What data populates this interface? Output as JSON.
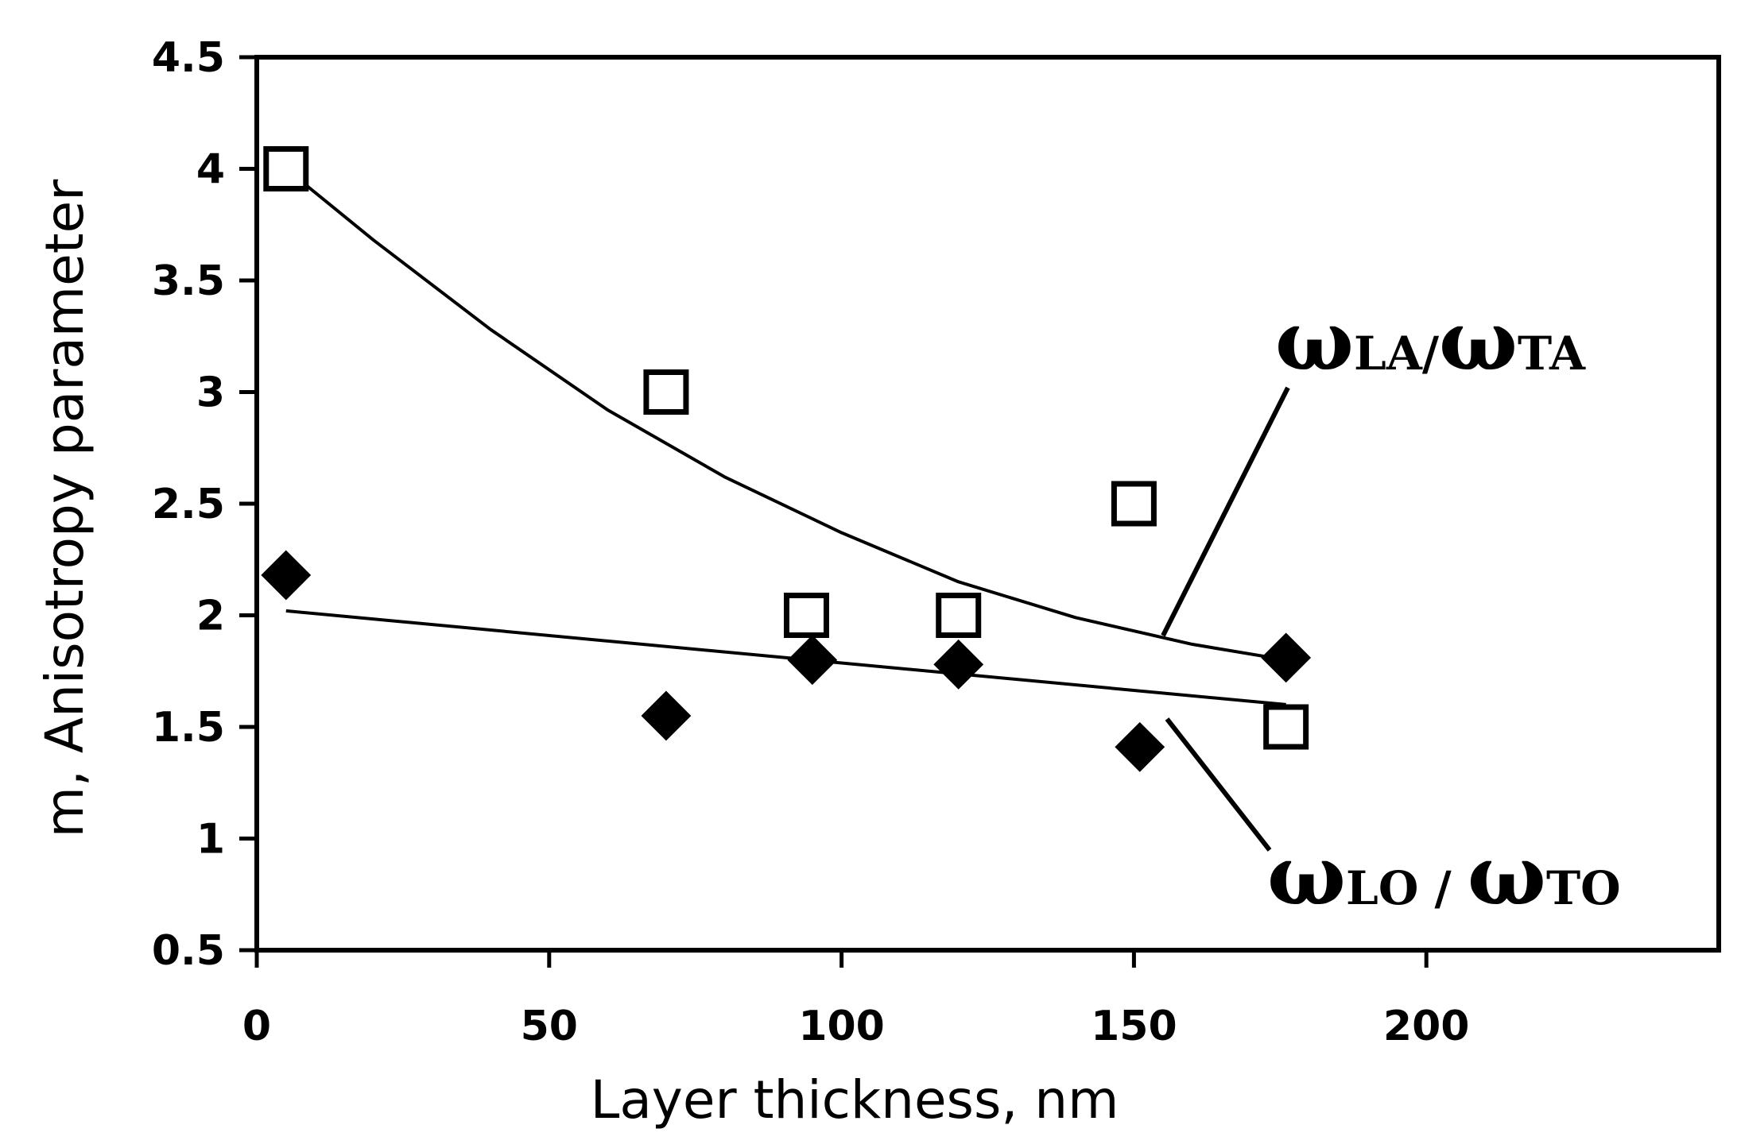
{
  "chart_data": {
    "type": "scatter",
    "title": "",
    "xlabel": "Layer thickness, nm",
    "ylabel": "m, Anisotropy parameter",
    "xlim": [
      0,
      250
    ],
    "ylim": [
      0.5,
      4.5
    ],
    "x_ticks": [
      0,
      50,
      100,
      150,
      200
    ],
    "x_tick_labels": [
      "0",
      "50",
      "100",
      "150",
      "200"
    ],
    "y_ticks": [
      0.5,
      1,
      1.5,
      2,
      2.5,
      3,
      3.5,
      4,
      4.5
    ],
    "y_tick_labels": [
      "0.5",
      "1",
      "1.5",
      "2",
      "2.5",
      "3",
      "3.5",
      "4",
      "4.5"
    ],
    "grid": false,
    "series": [
      {
        "name": "ωLA/ωTA",
        "label_main_1": "ω",
        "label_sub_1": "LA/",
        "label_main_2": "ω",
        "label_sub_2": "TA",
        "marker": "open-square",
        "x": [
          5,
          70,
          94,
          120,
          150,
          176
        ],
        "y": [
          4.0,
          3.0,
          2.0,
          2.0,
          2.5,
          1.5
        ],
        "trend_x": [
          5,
          20,
          40,
          60,
          80,
          100,
          120,
          140,
          160,
          176
        ],
        "trend_y": [
          4.0,
          3.68,
          3.28,
          2.92,
          2.62,
          2.37,
          2.15,
          1.99,
          1.87,
          1.8
        ]
      },
      {
        "name": "ωLO/ωTO",
        "label_main_1": "ω",
        "label_sub_1": "LO / ",
        "label_main_2": "ω",
        "label_sub_2": "TO",
        "marker": "filled-diamond",
        "x": [
          5,
          70,
          95,
          120,
          151,
          176
        ],
        "y": [
          2.18,
          1.55,
          1.8,
          1.78,
          1.41,
          1.81
        ],
        "trend_x": [
          5,
          176
        ],
        "trend_y": [
          2.02,
          1.6
        ]
      }
    ]
  }
}
